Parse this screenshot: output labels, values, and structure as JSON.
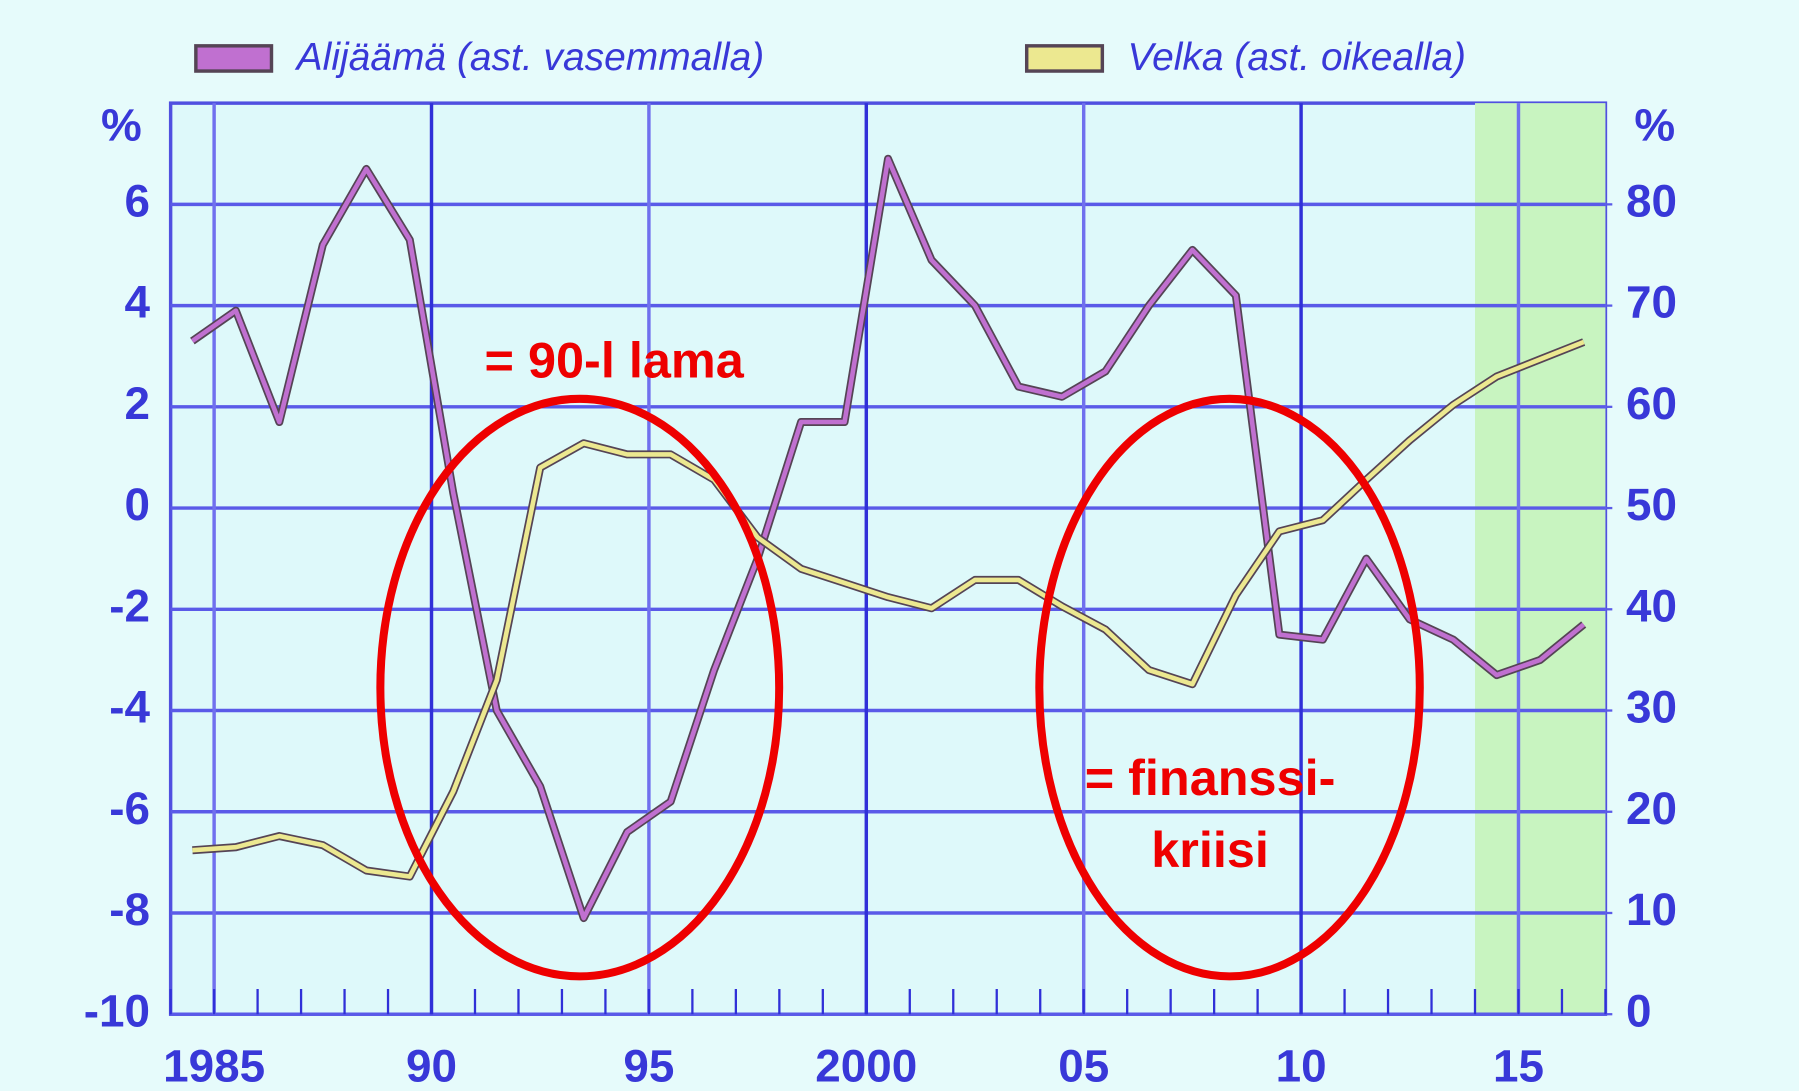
{
  "chart_data": {
    "type": "line",
    "legend_position": "top",
    "ylabel": "%",
    "y2label": "%",
    "xlim": [
      1984,
      2017
    ],
    "xticks": [
      1985,
      {
        "value": 1990,
        "label": "90"
      },
      {
        "value": 1995,
        "label": "95"
      },
      2000,
      {
        "value": 2005,
        "label": "05"
      },
      {
        "value": 2010,
        "label": "10"
      },
      {
        "value": 2015,
        "label": "15"
      }
    ],
    "ylim": [
      -10,
      8
    ],
    "yticks": [
      -10,
      -8,
      -6,
      -4,
      -2,
      0,
      2,
      4,
      6
    ],
    "y2lim": [
      0,
      90
    ],
    "y2ticks": [
      0,
      10,
      20,
      30,
      40,
      50,
      60,
      70,
      80
    ],
    "grid": true,
    "shade_x": [
      2014,
      2017
    ],
    "shade_color": "#c8f4c0",
    "x": [
      1984.5,
      1985.5,
      1986.5,
      1987.5,
      1988.5,
      1989.5,
      1990.5,
      1991.5,
      1992.5,
      1993.5,
      1994.5,
      1995.5,
      1996.5,
      1997.5,
      1998.5,
      1999.5,
      2000.5,
      2001.5,
      2002.5,
      2003.5,
      2004.5,
      2005.5,
      2006.5,
      2007.5,
      2008.5,
      2009.5,
      2010.5,
      2011.5,
      2012.5,
      2013.5,
      2014.5,
      2015.5,
      2016.5
    ],
    "series": [
      {
        "name": "Alijäämä (ast. vasemmalla)",
        "color": "#c070d0",
        "values": [
          3.3,
          3.9,
          1.7,
          5.2,
          6.7,
          5.3,
          0.3,
          -4.0,
          -5.5,
          -8.1,
          -6.4,
          -5.8,
          -3.2,
          -1.0,
          1.7,
          1.7,
          6.9,
          4.9,
          4.0,
          2.4,
          2.2,
          2.7,
          4.0,
          5.1,
          4.2,
          -2.5,
          -2.6,
          -1.0,
          -2.2,
          -2.6,
          -3.3,
          -3.0,
          -2.3
        ]
      },
      {
        "name": "Velka (ast. oikealla)",
        "color": "#ece890",
        "axis": "y2",
        "values": [
          16.2,
          16.5,
          17.6,
          16.7,
          14.2,
          13.6,
          22,
          33,
          54,
          56.4,
          55.3,
          55.3,
          52.8,
          47.1,
          44,
          42.6,
          41.2,
          40.1,
          42.9,
          42.9,
          40.3,
          38,
          34,
          32.6,
          41.4,
          47.7,
          48.8,
          52.8,
          56.7,
          60.2,
          63,
          64.7,
          66.4
        ]
      }
    ],
    "annotations": [
      "= 90-l lama",
      "= finanssi-",
      "kriisi"
    ]
  }
}
